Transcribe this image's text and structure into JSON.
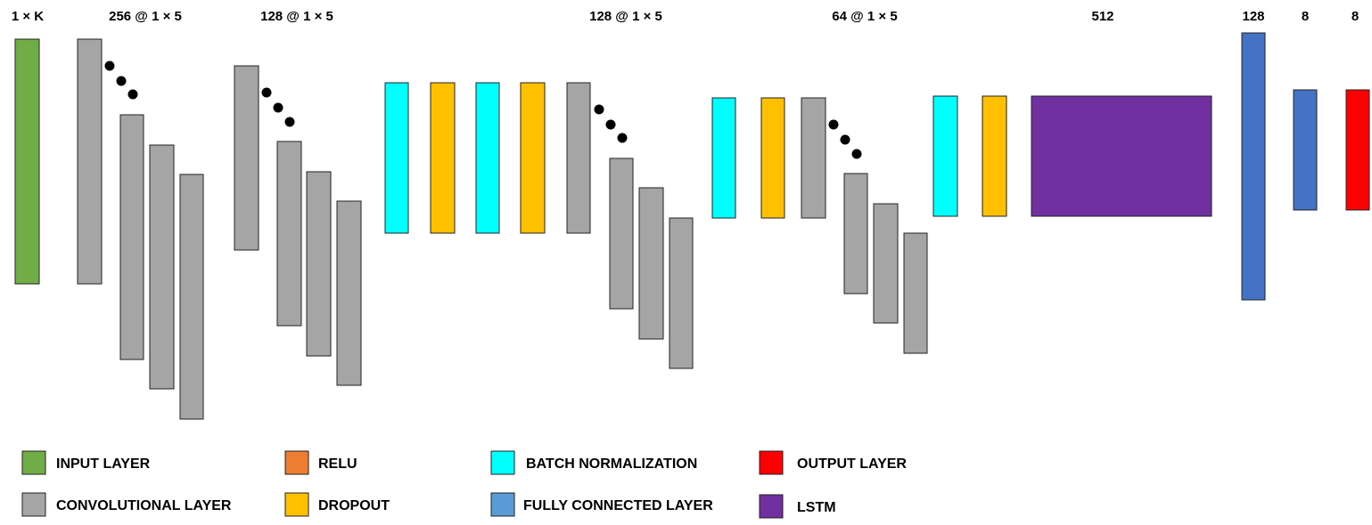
{
  "colors": {
    "input": "#70ad47",
    "conv": "#a5a5a5",
    "relu": "#ed7d31",
    "dropout": "#ffc000",
    "batchnorm": "#00ffff",
    "fc": "#4472c4",
    "fc_legend": "#5b9bd5",
    "output": "#ff0000",
    "lstm": "#7030a0",
    "dots": "#000000"
  },
  "top_labels": [
    "1 × K",
    "256 @ 1 × 5",
    "128 @ 1 × 5",
    "128 @ 1 × 5",
    "64 @ 1 × 5",
    "512",
    "128",
    "8",
    "8"
  ],
  "legend": {
    "input": "INPUT LAYER",
    "conv": "CONVOLUTIONAL LAYER",
    "relu": "RELU",
    "dropout": "DROPOUT",
    "batchnorm": "BATCH NORMALIZATION",
    "fc": "FULLY CONNECTED LAYER",
    "output": "OUTPUT LAYER",
    "lstm": "LSTM"
  }
}
